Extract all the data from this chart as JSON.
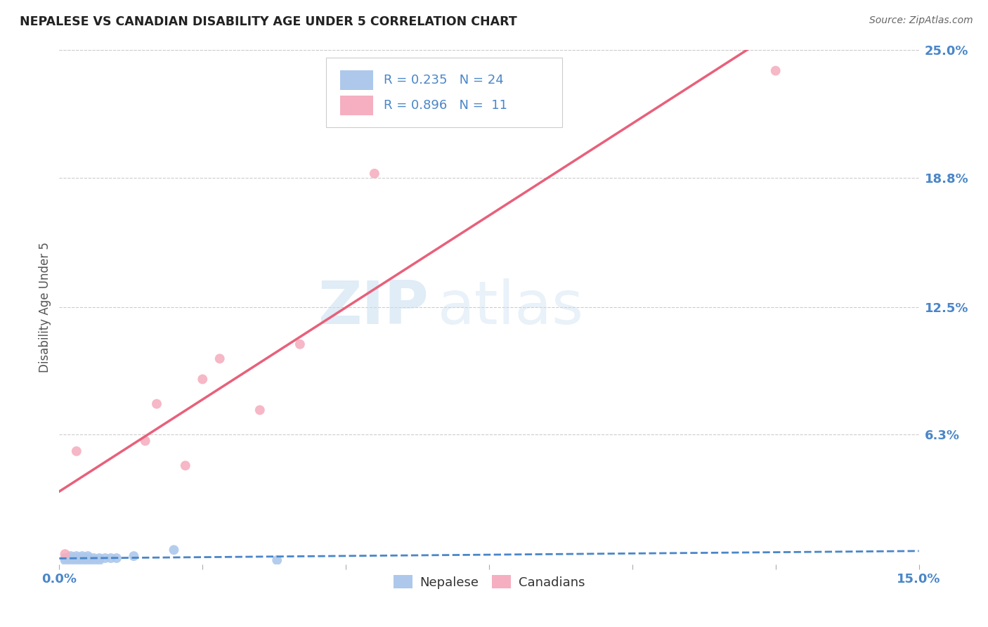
{
  "title": "NEPALESE VS CANADIAN DISABILITY AGE UNDER 5 CORRELATION CHART",
  "source": "Source: ZipAtlas.com",
  "ylabel": "Disability Age Under 5",
  "xlim": [
    0.0,
    0.15
  ],
  "ylim": [
    0.0,
    0.25
  ],
  "ytick_vals": [
    0.0,
    0.063,
    0.125,
    0.188,
    0.25
  ],
  "ytick_labels": [
    "",
    "6.3%",
    "12.5%",
    "18.8%",
    "25.0%"
  ],
  "xtick_vals": [
    0.0,
    0.025,
    0.05,
    0.075,
    0.1,
    0.125,
    0.15
  ],
  "xtick_labels": [
    "0.0%",
    "",
    "",
    "",
    "",
    "",
    "15.0%"
  ],
  "nepalese_R": 0.235,
  "nepalese_N": 24,
  "canadian_R": 0.896,
  "canadian_N": 11,
  "nepalese_color": "#adc8eb",
  "canadian_color": "#f5afc0",
  "nepalese_line_color": "#4a86c8",
  "canadian_line_color": "#e8607a",
  "watermark_zip": "ZIP",
  "watermark_atlas": "atlas",
  "background_color": "#ffffff",
  "grid_color": "#cccccc",
  "nepalese_x": [
    0.001,
    0.001,
    0.002,
    0.002,
    0.002,
    0.003,
    0.003,
    0.003,
    0.004,
    0.004,
    0.004,
    0.005,
    0.005,
    0.005,
    0.006,
    0.006,
    0.007,
    0.007,
    0.008,
    0.009,
    0.01,
    0.013,
    0.02,
    0.038
  ],
  "nepalese_y": [
    0.002,
    0.003,
    0.002,
    0.003,
    0.004,
    0.002,
    0.003,
    0.004,
    0.002,
    0.003,
    0.004,
    0.002,
    0.003,
    0.004,
    0.002,
    0.003,
    0.002,
    0.003,
    0.003,
    0.003,
    0.003,
    0.004,
    0.007,
    0.002
  ],
  "canadian_x": [
    0.001,
    0.003,
    0.015,
    0.017,
    0.022,
    0.025,
    0.028,
    0.035,
    0.042,
    0.055,
    0.125
  ],
  "canadian_y": [
    0.005,
    0.055,
    0.06,
    0.078,
    0.048,
    0.09,
    0.1,
    0.075,
    0.107,
    0.19,
    0.24
  ],
  "legend_text_color": "#4a86c8",
  "tick_color": "#4a86c8",
  "title_color": "#222222",
  "source_color": "#666666",
  "ylabel_color": "#555555",
  "bottom_label_color": "#333333"
}
